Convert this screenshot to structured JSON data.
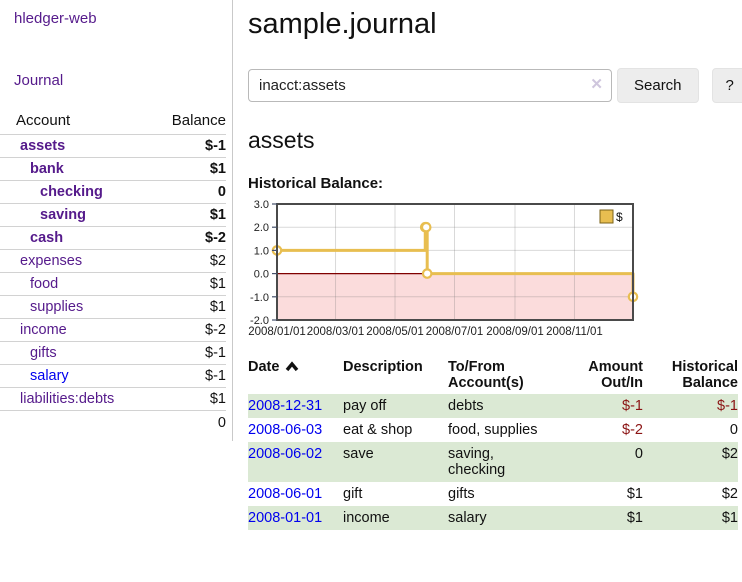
{
  "colors": {
    "link_purple": "#551a8b",
    "link_blue": "#0000ee",
    "negative_strong": "#a40000",
    "negative_soft": "#b36b6b",
    "negative_table": "#8b1414",
    "row_green": "#dbe9d4",
    "chart_line_gold": "#e8be50",
    "chart_negative_fill": "#fbdcdc",
    "chart_zero_line": "#800000",
    "chart_border": "#4a4a4a"
  },
  "sidebar": {
    "app_title": "hledger-web",
    "journal_link": "Journal",
    "accounts_table": {
      "headers": [
        "Account",
        "Balance"
      ],
      "rows": [
        {
          "name": "assets",
          "balance": "$-1"
        },
        {
          "name": "bank",
          "balance": "$1"
        },
        {
          "name": "checking",
          "balance": "0"
        },
        {
          "name": "saving",
          "balance": "$1"
        },
        {
          "name": "cash",
          "balance": "$-2"
        },
        {
          "name": "expenses",
          "balance": "$2"
        },
        {
          "name": "food",
          "balance": "$1"
        },
        {
          "name": "supplies",
          "balance": "$1"
        },
        {
          "name": "income",
          "balance": "$-2"
        },
        {
          "name": "gifts",
          "balance": "$-1"
        },
        {
          "name": "salary",
          "balance": "$-1"
        },
        {
          "name": "liabilities:debts",
          "balance": "$1"
        }
      ],
      "total": "0"
    }
  },
  "main": {
    "title": "sample.journal",
    "search": {
      "value": "inacct:assets",
      "clear_icon": "✕",
      "search_label": "Search",
      "help_label": "?"
    },
    "section_heading": "assets",
    "chart_label": "Historical Balance:",
    "register_table": {
      "headers": [
        "Date",
        "Description",
        "To/From Account(s)",
        "Amount Out/In",
        "Historical Balance"
      ],
      "rows": [
        {
          "date": "2008-12-31",
          "description": "pay off",
          "accounts": "debts",
          "amount": "$-1",
          "balance": "$-1"
        },
        {
          "date": "2008-06-03",
          "description": "eat & shop",
          "accounts": "food, supplies",
          "amount": "$-2",
          "balance": "0"
        },
        {
          "date": "2008-06-02",
          "description": "save",
          "accounts": "saving, checking",
          "amount": "0",
          "balance": "$2"
        },
        {
          "date": "2008-06-01",
          "description": "gift",
          "accounts": "gifts",
          "amount": "$1",
          "balance": "$2"
        },
        {
          "date": "2008-01-01",
          "description": "income",
          "accounts": "salary",
          "amount": "$1",
          "balance": "$1"
        }
      ]
    }
  },
  "chart_data": {
    "type": "line",
    "title": "Historical Balance",
    "step": true,
    "series": [
      {
        "name": "$",
        "points": [
          {
            "date": "2008-01-01",
            "day": 0,
            "value": 1
          },
          {
            "date": "2008-06-01",
            "day": 152,
            "value": 2
          },
          {
            "date": "2008-06-02",
            "day": 153,
            "value": 2
          },
          {
            "date": "2008-06-03",
            "day": 154,
            "value": 0
          },
          {
            "date": "2008-12-31",
            "day": 365,
            "value": -1
          }
        ]
      }
    ],
    "x_ticks": [
      {
        "day": 0,
        "label": "2008/01/01"
      },
      {
        "day": 60,
        "label": "2008/03/01"
      },
      {
        "day": 121,
        "label": "2008/05/01"
      },
      {
        "day": 182,
        "label": "2008/07/01"
      },
      {
        "day": 244,
        "label": "2008/09/01"
      },
      {
        "day": 305,
        "label": "2008/11/01"
      }
    ],
    "y_ticks": [
      {
        "value": 3,
        "label": "3.0"
      },
      {
        "value": 2,
        "label": "2.0"
      },
      {
        "value": 1,
        "label": "1.0"
      },
      {
        "value": 0,
        "label": "0.0"
      },
      {
        "value": -1,
        "label": "-1.0"
      },
      {
        "value": -2,
        "label": "-2.0"
      }
    ],
    "xlim_days": [
      0,
      365
    ],
    "ylim": [
      -2,
      3
    ],
    "legend": {
      "label": "$",
      "position": "top-right"
    },
    "negative_region_shaded": true,
    "grid": true
  }
}
